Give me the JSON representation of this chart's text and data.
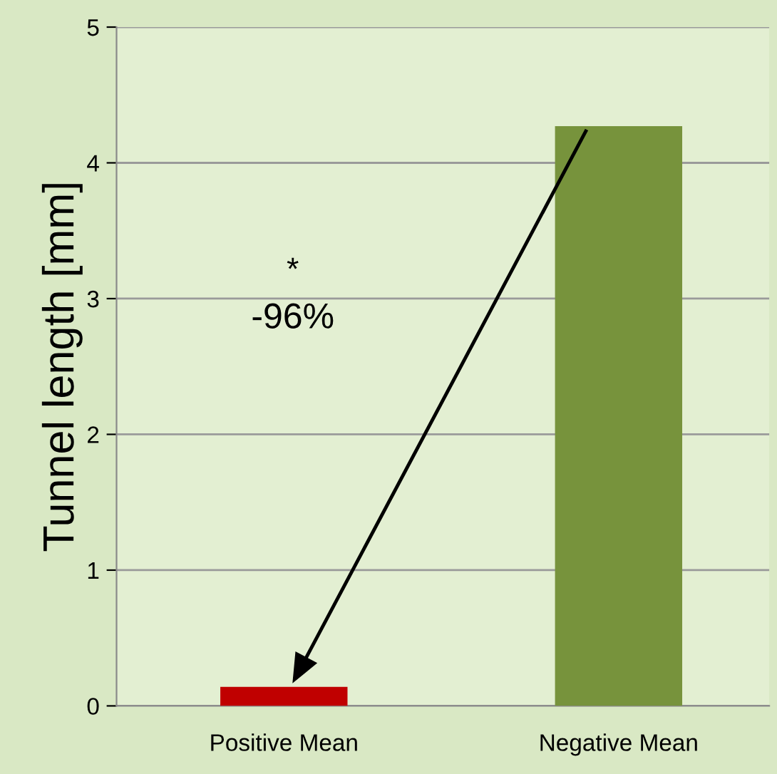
{
  "chart_data": {
    "type": "bar",
    "ylabel": "Tunnel length [mm]",
    "categories": [
      "Positive Mean",
      "Negative Mean"
    ],
    "values": [
      0.14,
      4.27
    ],
    "colors": [
      "#c00000",
      "#77933c"
    ],
    "ylim": [
      0,
      5
    ],
    "yticks": [
      0,
      1,
      2,
      3,
      4,
      5
    ],
    "grid": "y",
    "annotations": [
      "*",
      "-96%"
    ]
  }
}
